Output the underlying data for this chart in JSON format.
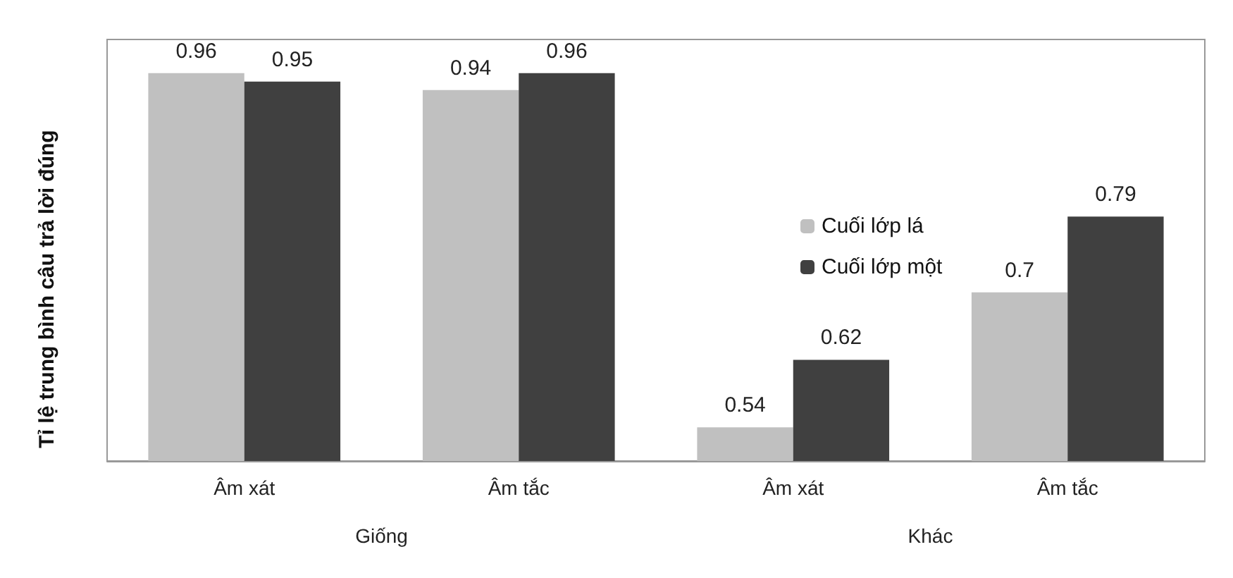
{
  "chart_data": {
    "type": "bar",
    "ylabel": "Tỉ lệ trung bình câu trả lời đúng",
    "categories": [
      "Âm xát",
      "Âm tắc",
      "Âm xát",
      "Âm tắc"
    ],
    "series": [
      {
        "name": "Cuối lớp lá",
        "color": "#c0c0c0",
        "values": [
          0.96,
          0.94,
          0.54,
          0.7
        ]
      },
      {
        "name": "Cuối lớp một",
        "color": "#404040",
        "values": [
          0.95,
          0.96,
          0.62,
          0.79
        ]
      }
    ],
    "annotations": [
      "Giống",
      "Khác"
    ],
    "ylim": [
      0.5,
      1
    ],
    "data_labels": true,
    "legend": "right"
  }
}
